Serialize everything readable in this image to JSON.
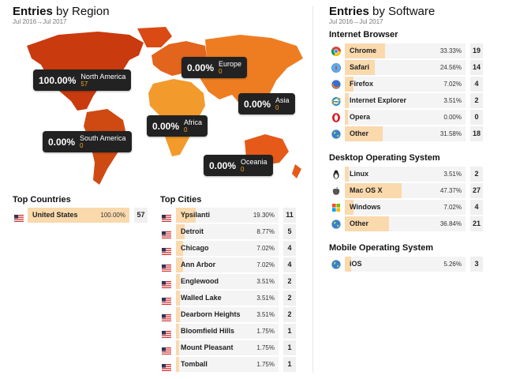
{
  "region_panel": {
    "title_bold": "Entries",
    "title_rest": " by Region",
    "date_range": "Jul 2016→Jul 2017",
    "regions": [
      {
        "name": "North America",
        "pct": "100.00%",
        "count": "57"
      },
      {
        "name": "Europe",
        "pct": "0.00%",
        "count": "0"
      },
      {
        "name": "Asia",
        "pct": "0.00%",
        "count": "0"
      },
      {
        "name": "Africa",
        "pct": "0.00%",
        "count": "0"
      },
      {
        "name": "South America",
        "pct": "0.00%",
        "count": "0"
      },
      {
        "name": "Oceania",
        "pct": "0.00%",
        "count": "0"
      }
    ],
    "top_countries": {
      "title": "Top Countries",
      "items": [
        {
          "label": "United States",
          "pct": "100.00%",
          "count": "57",
          "fill": 1.0
        }
      ]
    },
    "top_cities": {
      "title": "Top Cities",
      "items": [
        {
          "label": "Ypsilanti",
          "pct": "19.30%",
          "count": "11",
          "fill": 0.193
        },
        {
          "label": "Detroit",
          "pct": "8.77%",
          "count": "5",
          "fill": 0.0877
        },
        {
          "label": "Chicago",
          "pct": "7.02%",
          "count": "4",
          "fill": 0.0702
        },
        {
          "label": "Ann Arbor",
          "pct": "7.02%",
          "count": "4",
          "fill": 0.0702
        },
        {
          "label": "Englewood",
          "pct": "3.51%",
          "count": "2",
          "fill": 0.0351
        },
        {
          "label": "Walled Lake",
          "pct": "3.51%",
          "count": "2",
          "fill": 0.0351
        },
        {
          "label": "Dearborn Heights",
          "pct": "3.51%",
          "count": "2",
          "fill": 0.0351
        },
        {
          "label": "Bloomfield Hills",
          "pct": "1.75%",
          "count": "1",
          "fill": 0.0175
        },
        {
          "label": "Mount Pleasant",
          "pct": "1.75%",
          "count": "1",
          "fill": 0.0175
        },
        {
          "label": "Tomball",
          "pct": "1.75%",
          "count": "1",
          "fill": 0.0175
        }
      ]
    }
  },
  "software_panel": {
    "title_bold": "Entries",
    "title_rest": " by Software",
    "date_range": "Jul 2016→Jul 2017",
    "internet_browser": {
      "title": "Internet Browser",
      "items": [
        {
          "label": "Chrome",
          "pct": "33.33%",
          "count": "19",
          "fill": 0.3333,
          "icon": "chrome-icon"
        },
        {
          "label": "Safari",
          "pct": "24.56%",
          "count": "14",
          "fill": 0.2456,
          "icon": "safari-icon"
        },
        {
          "label": "Firefox",
          "pct": "7.02%",
          "count": "4",
          "fill": 0.0702,
          "icon": "firefox-icon"
        },
        {
          "label": "Internet Explorer",
          "pct": "3.51%",
          "count": "2",
          "fill": 0.0351,
          "icon": "internet-explorer-icon"
        },
        {
          "label": "Opera",
          "pct": "0.00%",
          "count": "0",
          "fill": 0.0,
          "icon": "opera-icon"
        },
        {
          "label": "Other",
          "pct": "31.58%",
          "count": "18",
          "fill": 0.3158,
          "icon": "globe-icon"
        }
      ]
    },
    "desktop_os": {
      "title": "Desktop Operating System",
      "items": [
        {
          "label": "Linux",
          "pct": "3.51%",
          "count": "2",
          "fill": 0.0351,
          "icon": "linux-icon"
        },
        {
          "label": "Mac OS X",
          "pct": "47.37%",
          "count": "27",
          "fill": 0.4737,
          "icon": "apple-icon"
        },
        {
          "label": "Windows",
          "pct": "7.02%",
          "count": "4",
          "fill": 0.0702,
          "icon": "windows-icon"
        },
        {
          "label": "Other",
          "pct": "36.84%",
          "count": "21",
          "fill": 0.3684,
          "icon": "globe-icon"
        }
      ]
    },
    "mobile_os": {
      "title": "Mobile Operating System",
      "items": [
        {
          "label": "iOS",
          "pct": "5.26%",
          "count": "3",
          "fill": 0.0526,
          "icon": "globe-icon"
        }
      ]
    }
  },
  "colors": {
    "bar_fill": "#fad9ad",
    "north_america": "#c93a0e",
    "south_america": "#cf4a12",
    "europe": "#e3641c",
    "asia": "#ee7d22",
    "africa": "#f39a2c",
    "oceania": "#e55a18"
  }
}
